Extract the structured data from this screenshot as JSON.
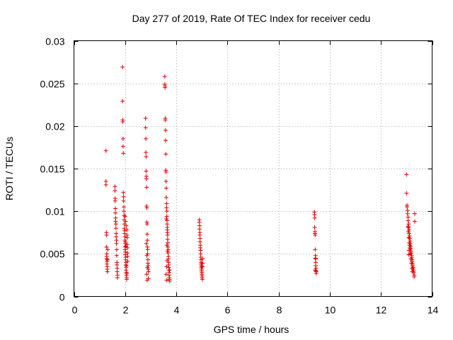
{
  "chart_data": {
    "type": "scatter",
    "title": "Day 277 of 2019, Rate Of TEC Index for receiver cedu",
    "xlabel": "GPS time / hours",
    "ylabel": "ROTI / TECUs",
    "xlim": [
      0,
      14
    ],
    "ylim": [
      0,
      0.03
    ],
    "xticks": [
      0,
      2,
      4,
      6,
      8,
      10,
      12,
      14
    ],
    "xtick_labels": [
      "0",
      "2",
      "4",
      "6",
      "8",
      "10",
      "12",
      "14"
    ],
    "yticks": [
      0,
      0.005,
      0.01,
      0.015,
      0.02,
      0.025,
      0.03
    ],
    "ytick_labels": [
      "0",
      "0.005",
      "0.01",
      "0.015",
      "0.02",
      "0.025",
      "0.03"
    ],
    "grid": true,
    "marker": "+",
    "color": "#e00000",
    "series": [
      {
        "name": "ROTI",
        "x": [
          1.25,
          1.25,
          1.25,
          1.27,
          1.27,
          1.27,
          1.28,
          1.28,
          1.28,
          1.29,
          1.29,
          1.3,
          1.3,
          1.31,
          1.31,
          1.32,
          1.6,
          1.6,
          1.61,
          1.61,
          1.62,
          1.62,
          1.63,
          1.63,
          1.64,
          1.64,
          1.65,
          1.65,
          1.66,
          1.66,
          1.67,
          1.67,
          1.68,
          1.68,
          1.69,
          1.69,
          1.7,
          1.7,
          1.9,
          1.9,
          1.91,
          1.91,
          1.92,
          1.92,
          1.93,
          1.93,
          1.94,
          1.94,
          1.95,
          1.95,
          1.96,
          1.96,
          1.97,
          1.97,
          1.98,
          1.98,
          1.99,
          1.99,
          2.0,
          2.0,
          2.0,
          2.01,
          2.01,
          2.02,
          2.02,
          2.03,
          2.03,
          2.04,
          2.04,
          2.05,
          2.05,
          2.06,
          2.06,
          2.07,
          2.07,
          2.08,
          2.08,
          2.09,
          2.09,
          2.1,
          2.1,
          2.0,
          2.02,
          2.04,
          2.01,
          2.03,
          2.05,
          2.06,
          2.8,
          2.8,
          2.81,
          2.81,
          2.82,
          2.82,
          2.83,
          2.83,
          2.84,
          2.84,
          2.85,
          2.85,
          2.86,
          2.86,
          2.87,
          2.87,
          2.88,
          2.88,
          2.89,
          2.89,
          2.9,
          2.9,
          2.91,
          2.91,
          2.86,
          2.84,
          2.87,
          2.85,
          2.83,
          3.55,
          3.55,
          3.56,
          3.56,
          3.57,
          3.57,
          3.58,
          3.58,
          3.59,
          3.59,
          3.6,
          3.6,
          3.61,
          3.61,
          3.62,
          3.62,
          3.63,
          3.63,
          3.64,
          3.64,
          3.65,
          3.65,
          3.66,
          3.66,
          3.67,
          3.67,
          3.68,
          3.68,
          3.69,
          3.69,
          3.7,
          3.7,
          3.71,
          3.71,
          3.72,
          3.72,
          3.73,
          3.73,
          3.74,
          3.74,
          3.6,
          3.62,
          3.64,
          3.66,
          3.63,
          3.65,
          3.61,
          3.62,
          4.9,
          4.9,
          4.91,
          4.91,
          4.92,
          4.92,
          4.93,
          4.93,
          4.94,
          4.94,
          4.95,
          4.95,
          4.96,
          4.96,
          4.97,
          4.97,
          4.98,
          4.98,
          4.99,
          4.99,
          5.0,
          5.0,
          5.01,
          5.01,
          5.02,
          5.02,
          5.03,
          5.03,
          9.4,
          9.4,
          9.41,
          9.41,
          9.42,
          9.42,
          9.43,
          9.43,
          9.44,
          9.44,
          9.45,
          9.45,
          9.46,
          9.46,
          9.47,
          9.47,
          9.43,
          9.44,
          13.0,
          13.0,
          13.02,
          13.02,
          13.04,
          13.04,
          13.06,
          13.06,
          13.08,
          13.08,
          13.1,
          13.1,
          13.12,
          13.12,
          13.14,
          13.14,
          13.16,
          13.16,
          13.18,
          13.18,
          13.2,
          13.2,
          13.22,
          13.22,
          13.24,
          13.24,
          13.26,
          13.26,
          13.28,
          13.28,
          13.3,
          13.3,
          13.32,
          13.32,
          13.05,
          13.07,
          13.09,
          13.11,
          13.13,
          13.15,
          13.17,
          13.19,
          13.21,
          13.23,
          13.08,
          13.1,
          13.12
        ],
        "y": [
          0.0171,
          0.0135,
          0.0131,
          0.0075,
          0.0072,
          0.0058,
          0.005,
          0.0047,
          0.0044,
          0.0041,
          0.0038,
          0.0035,
          0.0032,
          0.0029,
          0.0043,
          0.0055,
          0.0129,
          0.0124,
          0.0115,
          0.0112,
          0.0103,
          0.0098,
          0.0092,
          0.0088,
          0.0085,
          0.008,
          0.0074,
          0.007,
          0.0066,
          0.0062,
          0.0055,
          0.0048,
          0.004,
          0.0037,
          0.0033,
          0.0029,
          0.0025,
          0.0022,
          0.0269,
          0.0229,
          0.0207,
          0.0205,
          0.0185,
          0.0176,
          0.0168,
          0.0122,
          0.0117,
          0.0112,
          0.0105,
          0.01,
          0.0095,
          0.009,
          0.0085,
          0.008,
          0.0077,
          0.0074,
          0.007,
          0.0066,
          0.0062,
          0.0058,
          0.0055,
          0.0052,
          0.0049,
          0.0046,
          0.0043,
          0.004,
          0.0037,
          0.0034,
          0.0031,
          0.0028,
          0.0025,
          0.0022,
          0.002,
          0.0078,
          0.0072,
          0.0069,
          0.0061,
          0.0057,
          0.0051,
          0.0047,
          0.0041,
          0.0094,
          0.0088,
          0.0083,
          0.0064,
          0.0059,
          0.0036,
          0.0027,
          0.0209,
          0.0198,
          0.0185,
          0.0169,
          0.0164,
          0.0147,
          0.0141,
          0.0138,
          0.0128,
          0.0106,
          0.0104,
          0.0087,
          0.0085,
          0.0073,
          0.0066,
          0.0058,
          0.0055,
          0.005,
          0.0043,
          0.0039,
          0.0036,
          0.0032,
          0.0029,
          0.0021,
          0.0019,
          0.0026,
          0.0034,
          0.0048,
          0.0062,
          0.0258,
          0.0249,
          0.0247,
          0.0245,
          0.0209,
          0.0207,
          0.0195,
          0.0183,
          0.0167,
          0.0148,
          0.0146,
          0.0135,
          0.0127,
          0.0116,
          0.0109,
          0.0104,
          0.01,
          0.0094,
          0.0089,
          0.0085,
          0.0081,
          0.0075,
          0.0072,
          0.0067,
          0.0063,
          0.0058,
          0.0055,
          0.0051,
          0.0047,
          0.0044,
          0.004,
          0.0037,
          0.0034,
          0.0031,
          0.0028,
          0.0025,
          0.0022,
          0.002,
          0.0018,
          0.0031,
          0.0026,
          0.0035,
          0.0042,
          0.0053,
          0.006,
          0.0078,
          0.0091,
          0.0019,
          0.009,
          0.0087,
          0.0083,
          0.0079,
          0.0075,
          0.0072,
          0.0068,
          0.0064,
          0.006,
          0.0057,
          0.0054,
          0.005,
          0.0046,
          0.0043,
          0.004,
          0.0038,
          0.0036,
          0.0034,
          0.0032,
          0.003,
          0.0028,
          0.0026,
          0.0024,
          0.0022,
          0.002,
          0.0035,
          0.0039,
          0.0044,
          0.0099,
          0.0096,
          0.0092,
          0.0081,
          0.0076,
          0.0074,
          0.0072,
          0.0055,
          0.0048,
          0.0044,
          0.004,
          0.0036,
          0.0033,
          0.003,
          0.0029,
          0.0027,
          0.0031,
          0.0045,
          0.0143,
          0.0121,
          0.0107,
          0.0105,
          0.0101,
          0.0097,
          0.0093,
          0.0089,
          0.0085,
          0.0081,
          0.0078,
          0.0074,
          0.0071,
          0.0068,
          0.0065,
          0.0062,
          0.0059,
          0.0056,
          0.0053,
          0.0051,
          0.0048,
          0.0046,
          0.0043,
          0.0041,
          0.0038,
          0.0036,
          0.0034,
          0.0032,
          0.003,
          0.0028,
          0.0025,
          0.0023,
          0.0097,
          0.0088,
          0.0082,
          0.0076,
          0.0069,
          0.0063,
          0.0057,
          0.005,
          0.0044,
          0.0039,
          0.0033,
          0.0029,
          0.0049,
          0.0054,
          0.006
        ]
      }
    ]
  }
}
